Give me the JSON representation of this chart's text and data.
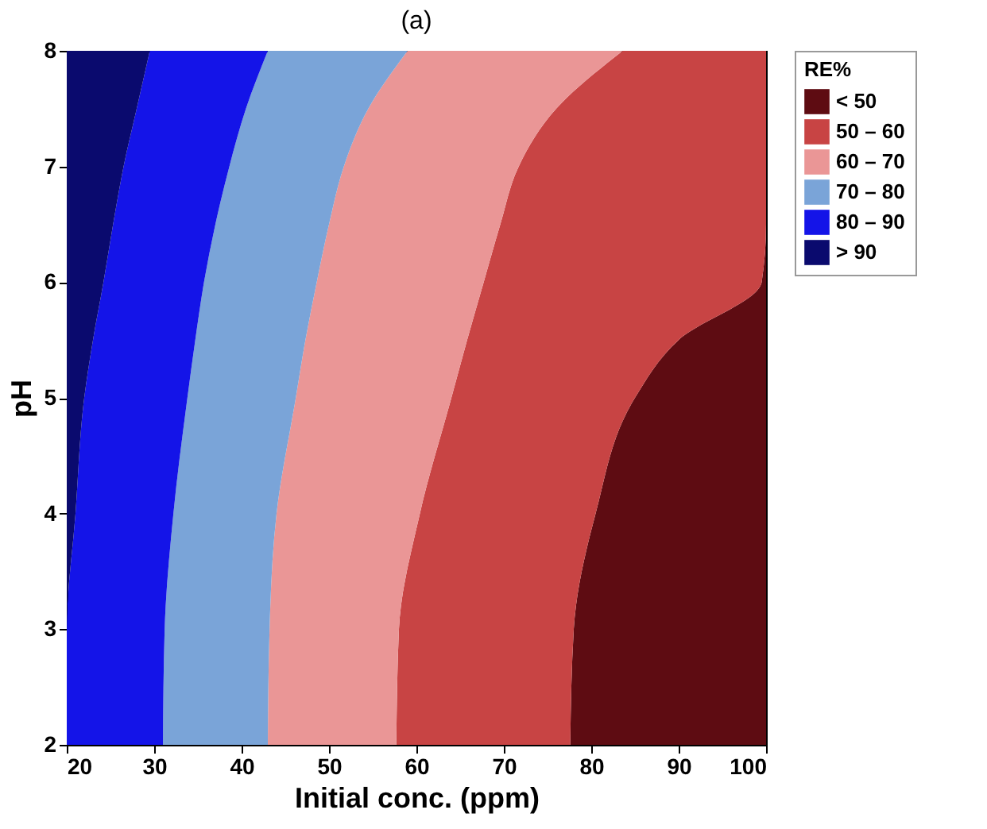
{
  "chart_data": {
    "type": "area",
    "orientation": "horizontal",
    "title": "(a)",
    "xlabel": "Initial conc. (ppm)",
    "ylabel": "pH",
    "legend_title": "RE%",
    "legend": "top right",
    "grid": false,
    "marker": "none",
    "x": [
      2,
      3,
      4,
      5,
      5.5,
      6,
      6.5,
      7,
      7.5,
      8
    ],
    "xlim": [
      20,
      100
    ],
    "xticks": [
      20,
      30,
      40,
      50,
      60,
      70,
      80,
      90,
      100
    ],
    "ylim": [
      2,
      8
    ],
    "yticks": [
      2,
      3,
      4,
      5,
      6,
      7,
      8
    ],
    "series": [
      {
        "name": "< 50",
        "color": "#5e0c12",
        "values": [
          100,
          100,
          100,
          100,
          100,
          100,
          100,
          100,
          100,
          100
        ]
      },
      {
        "name": "50 – 60",
        "color": "#c84444",
        "values": [
          77.6,
          78,
          80.5,
          85,
          90,
          99.5,
          100,
          100,
          100,
          100
        ]
      },
      {
        "name": "60 – 70",
        "color": "#ea9696",
        "values": [
          57.7,
          58,
          60.4,
          64,
          65.8,
          67.7,
          69.6,
          71.7,
          76,
          83.6
        ]
      },
      {
        "name": "70 – 80",
        "color": "#7aa4d8",
        "values": [
          43,
          43.2,
          44,
          46.2,
          47.3,
          48.6,
          50,
          51.7,
          54.5,
          59
        ]
      },
      {
        "name": "80 – 90",
        "color": "#1414e8",
        "values": [
          31,
          31.2,
          32.2,
          33.8,
          34.7,
          35.7,
          37,
          38.6,
          40.5,
          43
        ]
      },
      {
        "name": "> 90",
        "color": "#0a0a6e",
        "values": [
          20,
          20,
          21,
          22,
          23,
          24.2,
          25.3,
          26.5,
          28,
          29.5
        ]
      }
    ]
  }
}
